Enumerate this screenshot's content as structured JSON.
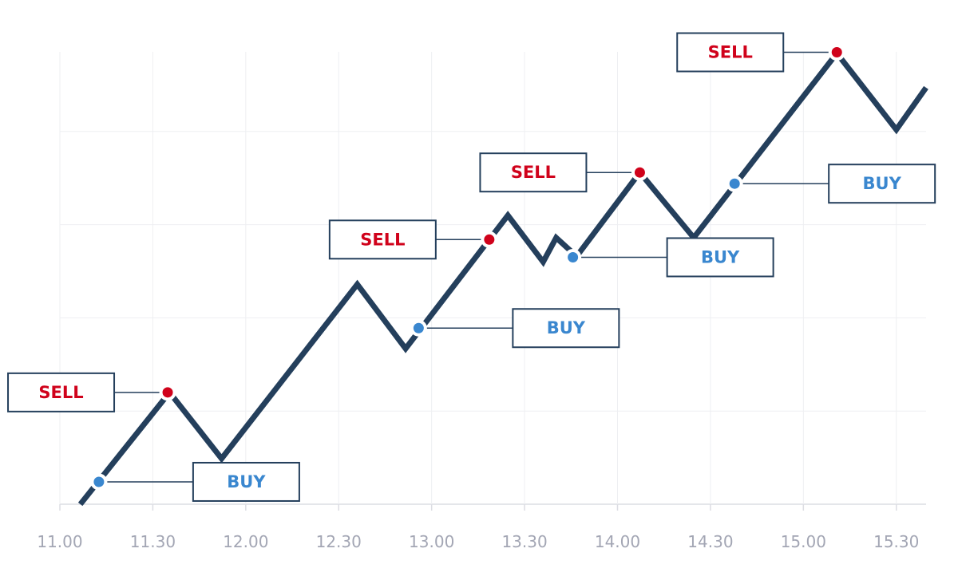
{
  "chart_data": {
    "type": "line",
    "x": [
      11.11,
      11.59,
      11.87,
      12.6,
      12.86,
      13.41,
      13.6,
      13.67,
      13.78,
      14.12,
      14.41,
      15.18,
      15.5,
      15.66
    ],
    "series": [
      {
        "color": "#243f5c",
        "values": [
          0,
          1.2,
          0.49,
          2.36,
          1.67,
          3.1,
          2.6,
          2.86,
          2.66,
          3.56,
          2.86,
          4.84,
          4.02,
          4.47
        ]
      }
    ],
    "xlim": [
      11,
      15.66
    ],
    "ylim": [
      0,
      5
    ],
    "xticks": [
      {
        "value": 11,
        "label": "11.00"
      },
      {
        "value": 11.5,
        "label": "11.30"
      },
      {
        "value": 12,
        "label": "12.00"
      },
      {
        "value": 12.5,
        "label": "12.30"
      },
      {
        "value": 13,
        "label": "13.00"
      },
      {
        "value": 13.5,
        "label": "13.30"
      },
      {
        "value": 14,
        "label": "14.00"
      },
      {
        "value": 14.5,
        "label": "14.30"
      },
      {
        "value": 15,
        "label": "15.00"
      },
      {
        "value": 15.5,
        "label": "15.30"
      }
    ],
    "yticks": [
      0,
      1,
      2,
      3,
      4
    ],
    "grid": true,
    "annotations": [
      {
        "label": "BUY",
        "x": 11.21,
        "y": 0.24,
        "color": "#3a87cf"
      },
      {
        "label": "SELL",
        "x": 11.58,
        "y": 1.2,
        "color": "#d0021b"
      },
      {
        "label": "BUY",
        "x": 12.93,
        "y": 1.89,
        "color": "#3a87cf"
      },
      {
        "label": "SELL",
        "x": 13.31,
        "y": 2.84,
        "color": "#d0021b"
      },
      {
        "label": "BUY",
        "x": 13.76,
        "y": 2.65,
        "color": "#3a87cf"
      },
      {
        "label": "SELL",
        "x": 14.12,
        "y": 3.56,
        "color": "#d0021b"
      },
      {
        "label": "BUY",
        "x": 14.63,
        "y": 3.44,
        "color": "#3a87cf"
      },
      {
        "label": "SELL",
        "x": 15.18,
        "y": 4.85,
        "color": "#d0021b"
      }
    ]
  }
}
